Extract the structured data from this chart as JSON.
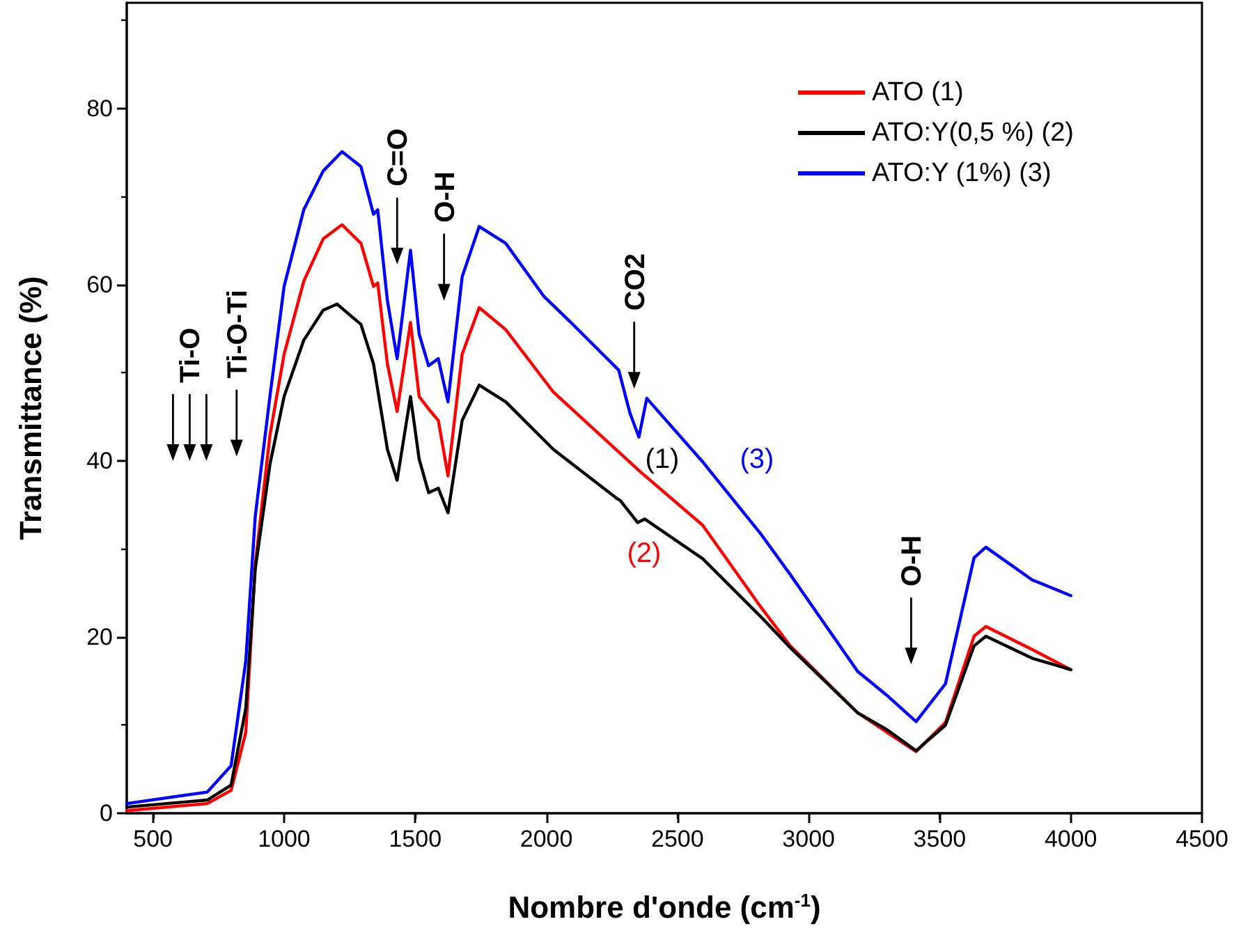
{
  "chart_data": {
    "type": "line",
    "xlabel": "Nombre d'onde (cm$^{-1}$)",
    "ylabel": "Transmittance (%)",
    "xlim": [
      400,
      4500
    ],
    "xticks": [
      500,
      1000,
      1500,
      2000,
      2500,
      3000,
      3500,
      4000,
      4500
    ],
    "ylim": [
      0,
      92
    ],
    "yticks": [
      0,
      20,
      40,
      60,
      80
    ],
    "grid": false,
    "legend": "top right",
    "marker": "none",
    "line_style": "solid",
    "series": [
      {
        "name": "ATO (1)",
        "color": "#ff0000",
        "x": [
          400,
          707,
          798,
          854,
          890,
          946,
          1000,
          1075,
          1149,
          1221,
          1293,
          1341,
          1357,
          1394,
          1431,
          1482,
          1515,
          1559,
          1588,
          1625,
          1679,
          1744,
          1845,
          2027,
          2357,
          2596,
          2818,
          2930,
          3187,
          3298,
          3410,
          3522,
          3631,
          3676,
          3852,
          4000
        ],
        "values": [
          0.3,
          1.1,
          2.6,
          9.2,
          28.2,
          42.9,
          52.1,
          60.4,
          65.2,
          66.8,
          64.7,
          59.8,
          60.2,
          51.0,
          45.6,
          55.7,
          47.3,
          45.6,
          44.6,
          38.3,
          52.1,
          57.4,
          54.9,
          47.8,
          38.8,
          32.7,
          23.4,
          19.0,
          11.4,
          9.2,
          7.0,
          10.3,
          20.1,
          21.2,
          18.6,
          16.3
        ]
      },
      {
        "name": "ATO:Y(0,5 %) (2)",
        "color": "#000000",
        "x": [
          400,
          707,
          798,
          854,
          890,
          946,
          1000,
          1075,
          1149,
          1202,
          1293,
          1341,
          1394,
          1431,
          1482,
          1515,
          1551,
          1588,
          1625,
          1679,
          1744,
          1845,
          2027,
          2266,
          2282,
          2348,
          2375,
          2596,
          2818,
          2930,
          3187,
          3298,
          3410,
          3522,
          3631,
          3676,
          3852,
          4000
        ],
        "values": [
          0.7,
          1.5,
          3.2,
          11.9,
          27.7,
          39.6,
          47.3,
          53.7,
          57.1,
          57.8,
          55.5,
          51.0,
          41.3,
          37.8,
          47.3,
          40.2,
          36.4,
          36.9,
          34.1,
          44.6,
          48.6,
          46.7,
          41.3,
          35.8,
          35.5,
          33.0,
          33.4,
          28.9,
          22.3,
          18.8,
          11.4,
          9.5,
          7.1,
          10.0,
          19.0,
          20.1,
          17.6,
          16.3
        ]
      },
      {
        "name": "ATO:Y (1%) (3)",
        "color": "#0000ff",
        "x": [
          400,
          707,
          798,
          854,
          890,
          946,
          1000,
          1075,
          1149,
          1221,
          1293,
          1341,
          1357,
          1394,
          1431,
          1482,
          1515,
          1551,
          1588,
          1625,
          1679,
          1744,
          1845,
          1990,
          2101,
          2276,
          2319,
          2353,
          2383,
          2596,
          2818,
          2930,
          3187,
          3298,
          3410,
          3522,
          3631,
          3676,
          3852,
          4000
        ],
        "values": [
          1.1,
          2.4,
          5.4,
          17.3,
          33.7,
          47.3,
          59.8,
          68.5,
          72.9,
          75.1,
          73.4,
          68.0,
          68.5,
          58.2,
          51.6,
          63.9,
          54.4,
          50.8,
          51.6,
          46.7,
          60.9,
          66.6,
          64.7,
          58.7,
          55.5,
          50.3,
          45.4,
          42.7,
          47.1,
          39.9,
          31.7,
          27.1,
          16.1,
          13.4,
          10.4,
          14.7,
          29.0,
          30.2,
          26.5,
          24.7
        ]
      }
    ],
    "annotations": [
      "Ti-O",
      "Ti-O-Ti",
      "C=O",
      "O-H",
      "CO2",
      "O-H",
      "(1)",
      "(2)",
      "(3)"
    ]
  }
}
